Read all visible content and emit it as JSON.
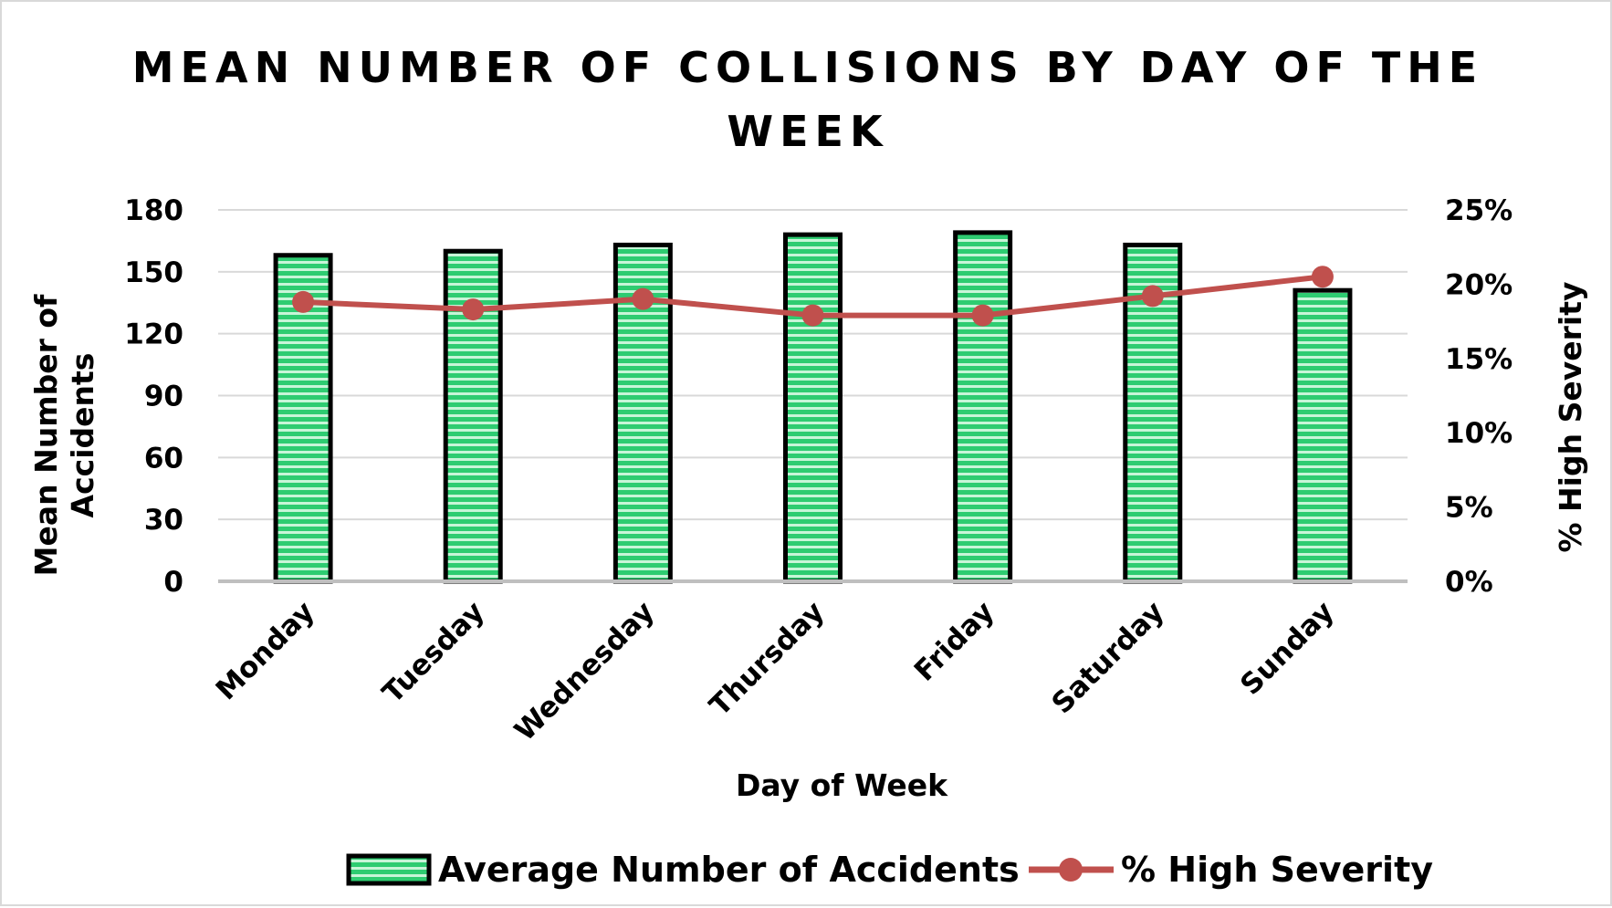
{
  "chart_data": {
    "type": "bar+line",
    "title_lines": [
      "MEAN NUMBER OF COLLISIONS BY DAY OF THE",
      "WEEK"
    ],
    "categories": [
      "Monday",
      "Tuesday",
      "Wednesday",
      "Thursday",
      "Friday",
      "Saturday",
      "Sunday"
    ],
    "series": [
      {
        "name": "Average Number of Accidents",
        "kind": "bar",
        "axis": "left",
        "values": [
          158,
          160,
          163,
          168,
          169,
          163,
          141
        ],
        "fill": "#2ecc71",
        "stripe": "#c8f5d8",
        "stroke": "#000000"
      },
      {
        "name": "% High Severity",
        "kind": "line",
        "axis": "right",
        "values": [
          18.8,
          18.3,
          19.0,
          17.9,
          17.9,
          19.2,
          20.5
        ],
        "color": "#c0504d"
      }
    ],
    "xlabel": "Day of Week",
    "ylabel_left": [
      "Mean Number of",
      "Accidents"
    ],
    "ylabel_right": "% High Severity",
    "ylim_left": [
      0,
      180
    ],
    "left_ticks": [
      "0",
      "30",
      "60",
      "90",
      "120",
      "150",
      "180"
    ],
    "ylim_right": [
      0,
      25
    ],
    "right_ticks": [
      "0%",
      "5%",
      "10%",
      "15%",
      "20%",
      "25%"
    ],
    "grid": true,
    "legend_position": "bottom"
  }
}
